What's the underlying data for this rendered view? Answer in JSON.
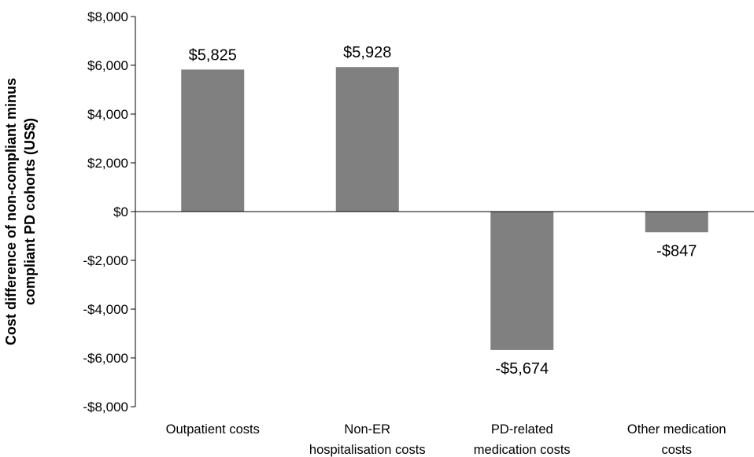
{
  "chart_data": {
    "type": "bar",
    "title": "",
    "xlabel": "",
    "ylabel": [
      "Cost difference of non-compliant minus",
      "compliant PD cohorts (US$)"
    ],
    "ylim": [
      -8000,
      8000
    ],
    "yticks": [
      8000,
      6000,
      4000,
      2000,
      0,
      -2000,
      -4000,
      -6000,
      -8000
    ],
    "ytick_labels": [
      "$8,000",
      "$6,000",
      "$4,000",
      "$2,000",
      "$0",
      "-$2,000",
      "-$4,000",
      "-$6,000",
      "-$8,000"
    ],
    "categories": [
      [
        "Outpatient costs"
      ],
      [
        "Non-ER",
        "hospitalisation  costs"
      ],
      [
        "PD-related",
        "medication costs"
      ],
      [
        "Other medication",
        "costs"
      ]
    ],
    "values": [
      5825,
      5928,
      -5674,
      -847
    ],
    "data_labels": [
      "$5,825",
      "$5,928",
      "-$5,674",
      "-$847"
    ],
    "bar_color": "#808080",
    "grid": false,
    "legend": "none"
  }
}
